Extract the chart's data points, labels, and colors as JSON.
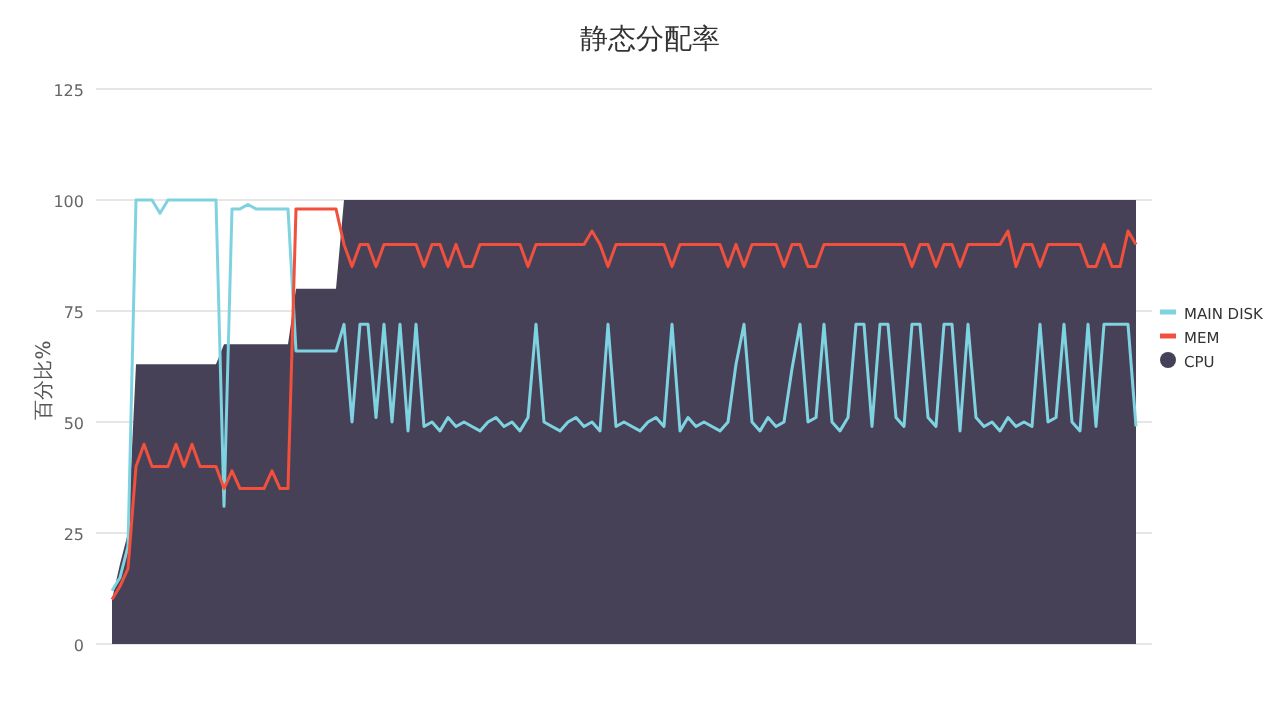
{
  "chart_data": {
    "type": "line",
    "title": "静态分配率",
    "ylabel": "百分比%",
    "categories": [
      null,
      null,
      null,
      null,
      null,
      null,
      null,
      null,
      null,
      null,
      null,
      null,
      null,
      null,
      null,
      null,
      null,
      null,
      null,
      null,
      null,
      null,
      null,
      null,
      null,
      null,
      null,
      null,
      null,
      null,
      null,
      null,
      null,
      null,
      null,
      null,
      null,
      null,
      null,
      null,
      null,
      null,
      null,
      null,
      null,
      null,
      null,
      null,
      null,
      null,
      null,
      null,
      null,
      null,
      null,
      null,
      null,
      null,
      null,
      null,
      null,
      null,
      null,
      null,
      null,
      null,
      null,
      null,
      null,
      null,
      null,
      null,
      null,
      null,
      null,
      null,
      null,
      null,
      null,
      null,
      null,
      null,
      null,
      null,
      null,
      null,
      null,
      null,
      null,
      null,
      null,
      null,
      null,
      null,
      null,
      null,
      null,
      null,
      null,
      null,
      null,
      null,
      null,
      null,
      null,
      null,
      null,
      null,
      null,
      null,
      null,
      null,
      null,
      null,
      null,
      null,
      null,
      null,
      null,
      null,
      null,
      null,
      null,
      null,
      null,
      null,
      null,
      null,
      null
    ],
    "ylim": [
      0,
      125
    ],
    "yticks": [
      0,
      25,
      50,
      75,
      100,
      125
    ],
    "grid": "y",
    "legend": "right",
    "series": [
      {
        "name": "MAIN DISK",
        "color": "#7fd3e0",
        "values": [
          12,
          15,
          22,
          100,
          100,
          100,
          97,
          100,
          100,
          100,
          100,
          100,
          100,
          100,
          31,
          98,
          98,
          99,
          98,
          98,
          98,
          98,
          98,
          66,
          66,
          66,
          66,
          66,
          66,
          72,
          50,
          72,
          72,
          51,
          72,
          50,
          72,
          48,
          72,
          49,
          50,
          48,
          51,
          49,
          50,
          49,
          48,
          50,
          51,
          49,
          50,
          48,
          51,
          72,
          50,
          49,
          48,
          50,
          51,
          49,
          50,
          48,
          72,
          49,
          50,
          49,
          48,
          50,
          51,
          49,
          72,
          48,
          51,
          49,
          50,
          49,
          48,
          50,
          63,
          72,
          50,
          48,
          51,
          49,
          50,
          62,
          72,
          50,
          51,
          72,
          50,
          48,
          51,
          72,
          72,
          49,
          72,
          72,
          51,
          49,
          72,
          72,
          51,
          49,
          72,
          72,
          48,
          72,
          51,
          49,
          50,
          48,
          51,
          49,
          50,
          49,
          72,
          50,
          51,
          72,
          50,
          48,
          72,
          49,
          72,
          72,
          72,
          72,
          49
        ]
      },
      {
        "name": "MEM",
        "color": "#f0503c",
        "values": [
          10,
          13,
          17,
          40,
          45,
          40,
          40,
          40,
          45,
          40,
          45,
          40,
          40,
          40,
          35,
          39,
          35,
          35,
          35,
          35,
          39,
          35,
          35,
          98,
          98,
          98,
          98,
          98,
          98,
          90,
          85,
          90,
          90,
          85,
          90,
          90,
          90,
          90,
          90,
          85,
          90,
          90,
          85,
          90,
          85,
          85,
          90,
          90,
          90,
          90,
          90,
          90,
          85,
          90,
          90,
          90,
          90,
          90,
          90,
          90,
          93,
          90,
          85,
          90,
          90,
          90,
          90,
          90,
          90,
          90,
          85,
          90,
          90,
          90,
          90,
          90,
          90,
          85,
          90,
          85,
          90,
          90,
          90,
          90,
          85,
          90,
          90,
          85,
          85,
          90,
          90,
          90,
          90,
          90,
          90,
          90,
          90,
          90,
          90,
          90,
          85,
          90,
          90,
          85,
          90,
          90,
          85,
          90,
          90,
          90,
          90,
          90,
          93,
          85,
          90,
          90,
          85,
          90,
          90,
          90,
          90,
          90,
          85,
          85,
          90,
          85,
          85,
          93,
          90
        ]
      },
      {
        "name": "CPU",
        "type": "area",
        "color": "#474158",
        "values": [
          10,
          18,
          25,
          63,
          63,
          63,
          63,
          63,
          63,
          63,
          63,
          63,
          63,
          63,
          67.5,
          67.5,
          67.5,
          67.5,
          67.5,
          67.5,
          67.5,
          67.5,
          67.5,
          80,
          80,
          80,
          80,
          80,
          80,
          100,
          100,
          100,
          100,
          100,
          100,
          100,
          100,
          100,
          100,
          100,
          100,
          100,
          100,
          100,
          100,
          100,
          100,
          100,
          100,
          100,
          100,
          100,
          100,
          100,
          100,
          100,
          100,
          100,
          100,
          100,
          100,
          100,
          100,
          100,
          100,
          100,
          100,
          100,
          100,
          100,
          100,
          100,
          100,
          100,
          100,
          100,
          100,
          100,
          100,
          100,
          100,
          100,
          100,
          100,
          100,
          100,
          100,
          100,
          100,
          100,
          100,
          100,
          100,
          100,
          100,
          100,
          100,
          100,
          100,
          100,
          100,
          100,
          100,
          100,
          100,
          100,
          100,
          100,
          100,
          100,
          100,
          100,
          100,
          100,
          100,
          100,
          100,
          100,
          100,
          100,
          100,
          100,
          100,
          100,
          100,
          100,
          100,
          100,
          100
        ]
      }
    ]
  }
}
